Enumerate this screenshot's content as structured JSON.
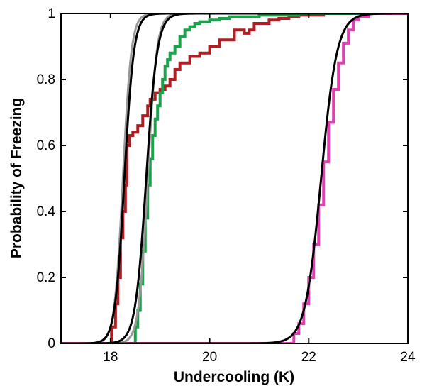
{
  "chart_data": {
    "type": "line",
    "title": "",
    "xlabel": "Undercooling (K)",
    "ylabel": "Probability of Freezing",
    "xlim": [
      17,
      24
    ],
    "ylim": [
      0,
      1
    ],
    "xticks": [
      18,
      20,
      22,
      24
    ],
    "yticks": [
      0,
      0.2,
      0.4,
      0.6,
      0.8,
      1
    ],
    "grid": false,
    "legend": "none",
    "series": [
      {
        "kind": "step",
        "color": "#b01d22",
        "x": [
          17.9,
          18.02,
          18.1,
          18.15,
          18.2,
          18.25,
          18.3,
          18.33,
          18.38,
          18.45,
          18.55,
          18.65,
          18.75,
          18.8,
          18.9,
          19.0,
          19.1,
          19.2,
          19.3,
          19.4,
          19.6,
          19.8,
          20.0,
          20.2,
          20.5,
          20.7,
          20.8,
          20.9,
          21.2,
          21.4,
          21.6,
          21.8,
          22.3
        ],
        "y": [
          0.0,
          0.05,
          0.12,
          0.2,
          0.32,
          0.4,
          0.48,
          0.6,
          0.63,
          0.64,
          0.66,
          0.69,
          0.72,
          0.74,
          0.76,
          0.77,
          0.78,
          0.8,
          0.83,
          0.85,
          0.87,
          0.88,
          0.9,
          0.92,
          0.95,
          0.94,
          0.95,
          0.97,
          0.98,
          0.985,
          0.99,
          0.995,
          1.0
        ]
      },
      {
        "kind": "step",
        "color": "#1aa34a",
        "x": [
          18.4,
          18.5,
          18.55,
          18.6,
          18.65,
          18.7,
          18.75,
          18.8,
          18.85,
          18.9,
          18.95,
          19.0,
          19.05,
          19.1,
          19.15,
          19.2,
          19.3,
          19.4,
          19.5,
          19.6,
          19.7,
          19.8,
          20.0,
          20.2,
          20.4,
          20.6,
          21.0,
          21.4,
          21.8,
          22.3
        ],
        "y": [
          0.0,
          0.05,
          0.1,
          0.18,
          0.28,
          0.38,
          0.48,
          0.56,
          0.63,
          0.68,
          0.72,
          0.76,
          0.8,
          0.84,
          0.86,
          0.88,
          0.9,
          0.93,
          0.95,
          0.96,
          0.97,
          0.975,
          0.98,
          0.985,
          0.99,
          0.99,
          0.995,
          0.995,
          1.0,
          1.0
        ]
      },
      {
        "kind": "step",
        "color": "#e040b0",
        "x": [
          21.6,
          21.7,
          21.8,
          21.9,
          22.0,
          22.1,
          22.2,
          22.3,
          22.4,
          22.5,
          22.6,
          22.7,
          22.8,
          22.9,
          23.0,
          23.2
        ],
        "y": [
          0.0,
          0.03,
          0.06,
          0.12,
          0.2,
          0.3,
          0.42,
          0.55,
          0.67,
          0.77,
          0.85,
          0.91,
          0.95,
          0.98,
          0.99,
          1.0
        ]
      },
      {
        "kind": "sigmoid",
        "color": "#000000",
        "x0": 18.28,
        "scale": 0.095
      },
      {
        "kind": "sigmoid",
        "color": "#999999",
        "x0": 18.25,
        "scale": 0.085
      },
      {
        "kind": "sigmoid",
        "color": "#000000",
        "x0": 18.72,
        "scale": 0.11
      },
      {
        "kind": "sigmoid",
        "color": "#999999",
        "x0": 18.75,
        "scale": 0.09
      },
      {
        "kind": "sigmoid",
        "color": "#000000",
        "x0": 22.25,
        "scale": 0.16
      }
    ]
  }
}
